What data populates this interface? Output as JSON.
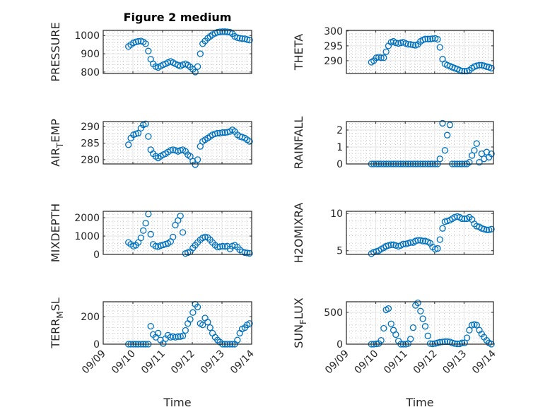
{
  "figure": {
    "title": "Figure 2 medium",
    "marker_color": "#0072BD"
  },
  "chart_data": {
    "type": "scatter",
    "x_axis": {
      "label": "Time",
      "units": "days since 09/09 00:00",
      "range": [
        0,
        5
      ],
      "tick_values": [
        0,
        1,
        2,
        3,
        4,
        5
      ],
      "tick_labels": [
        "09/09",
        "09/10",
        "09/11",
        "09/12",
        "09/13",
        "09/14"
      ]
    },
    "x": [
      0.85,
      0.93,
      1.02,
      1.1,
      1.18,
      1.27,
      1.35,
      1.43,
      1.52,
      1.6,
      1.68,
      1.77,
      1.85,
      1.93,
      2.02,
      2.1,
      2.18,
      2.27,
      2.35,
      2.43,
      2.52,
      2.6,
      2.68,
      2.77,
      2.85,
      2.93,
      3.02,
      3.1,
      3.18,
      3.27,
      3.35,
      3.43,
      3.52,
      3.6,
      3.68,
      3.77,
      3.85,
      3.93,
      4.02,
      4.1,
      4.18,
      4.27,
      4.35,
      4.43,
      4.52,
      4.6,
      4.68,
      4.77,
      4.85,
      4.93
    ],
    "subplots": [
      {
        "name": "PRESSURE",
        "ylabel": "PRESSURE",
        "column": "left",
        "row": 1,
        "ylim": [
          792,
          1028
        ],
        "yticks": [
          800,
          900,
          1000
        ],
        "grid": true,
        "show_xticklabels": false,
        "values": [
          940,
          950,
          960,
          965,
          968,
          970,
          965,
          955,
          915,
          870,
          845,
          830,
          825,
          832,
          840,
          845,
          852,
          858,
          852,
          845,
          838,
          832,
          840,
          845,
          838,
          828,
          815,
          800,
          830,
          900,
          955,
          970,
          985,
          995,
          1005,
          1012,
          1018,
          1020,
          1021,
          1021,
          1020,
          1018,
          1010,
          995,
          988,
          985,
          983,
          982,
          978,
          975
        ]
      },
      {
        "name": "THETA",
        "ylabel": "THETA",
        "column": "right",
        "row": 1,
        "ylim": [
          285.7,
          300.2
        ],
        "yticks": [
          290,
          295,
          300
        ],
        "grid": true,
        "show_xticklabels": false,
        "values": [
          289.5,
          290,
          291,
          291.2,
          291,
          291,
          293,
          295,
          296.2,
          296.5,
          296,
          295.8,
          296,
          296.2,
          295.8,
          295.5,
          295.5,
          295.3,
          295.2,
          295.5,
          296.5,
          297,
          297.3,
          297.3,
          297.3,
          297.4,
          297.5,
          297.2,
          294.5,
          290.5,
          289,
          288.5,
          288.2,
          287.8,
          287.5,
          287.2,
          286.8,
          286.5,
          286.5,
          286.5,
          286.8,
          287.5,
          288,
          288.3,
          288.5,
          288.5,
          288.3,
          288,
          287.8,
          287.5
        ]
      },
      {
        "name": "AIR_TEMP",
        "ylabel": "AIR_TEMP",
        "column": "left",
        "row": 2,
        "ylim": [
          278.7,
          291.5
        ],
        "yticks": [
          280,
          285,
          290
        ],
        "grid": true,
        "show_xticklabels": false,
        "values": [
          284.5,
          286.5,
          287.5,
          287.8,
          288,
          289.5,
          290.5,
          290.8,
          287,
          283,
          281.8,
          281,
          280.5,
          281,
          281.5,
          281.8,
          282.3,
          282.8,
          283,
          282.8,
          282.5,
          282.8,
          283,
          282.5,
          281.5,
          281,
          279.5,
          278.5,
          280,
          284,
          285.5,
          286,
          286.5,
          287,
          287.5,
          287.8,
          288,
          288,
          288.2,
          288.2,
          288.3,
          288.5,
          289,
          288.5,
          287.5,
          287,
          286.8,
          286.5,
          286,
          285.5
        ]
      },
      {
        "name": "RAINFALL",
        "ylabel": "RAINFALL",
        "column": "right",
        "row": 2,
        "ylim": [
          0,
          2.5
        ],
        "yticks": [
          0,
          1,
          2
        ],
        "grid": true,
        "show_xticklabels": false,
        "values": [
          0,
          0,
          0,
          0,
          0,
          0,
          0,
          0,
          0,
          0,
          0,
          0,
          0,
          0,
          0,
          0,
          0,
          0,
          0,
          0,
          0,
          0,
          0,
          0,
          0,
          0,
          0,
          0,
          0.3,
          2.4,
          0.8,
          1.7,
          2.3,
          0,
          0,
          0,
          0,
          0,
          0,
          0,
          0.1,
          0.5,
          0.8,
          1.2,
          0.1,
          0.6,
          0.3,
          0.7,
          0.4,
          0.6
        ]
      },
      {
        "name": "MIXDEPTH",
        "ylabel": "MIXDEPTH",
        "column": "left",
        "row": 3,
        "ylim": [
          0,
          2350
        ],
        "yticks": [
          0,
          1000,
          2000
        ],
        "grid": true,
        "show_xticklabels": false,
        "values": [
          650,
          550,
          450,
          500,
          650,
          900,
          1300,
          1700,
          2200,
          1100,
          550,
          450,
          420,
          480,
          520,
          560,
          600,
          700,
          950,
          1600,
          1850,
          2100,
          1200,
          50,
          100,
          150,
          350,
          500,
          650,
          800,
          900,
          950,
          920,
          800,
          650,
          500,
          400,
          420,
          450,
          430,
          450,
          300,
          450,
          500,
          400,
          250,
          150,
          100,
          80,
          60
        ]
      },
      {
        "name": "H2OMIXRA",
        "ylabel": "H2OMIXRA",
        "column": "right",
        "row": 3,
        "ylim": [
          4.5,
          10.3
        ],
        "yticks": [
          5,
          10
        ],
        "grid": true,
        "show_xticklabels": false,
        "values": [
          4.6,
          4.8,
          4.9,
          5.0,
          5.2,
          5.4,
          5.6,
          5.7,
          5.8,
          5.8,
          5.7,
          5.6,
          5.7,
          5.9,
          5.9,
          6.0,
          6.1,
          6.1,
          6.3,
          6.4,
          6.4,
          6.3,
          6.3,
          6.2,
          6.0,
          5.5,
          5.2,
          5.3,
          6.5,
          8.0,
          8.9,
          9.0,
          9.1,
          9.3,
          9.5,
          9.6,
          9.5,
          9.3,
          9.3,
          9.3,
          9.5,
          9.2,
          8.6,
          8.3,
          8.2,
          8.0,
          7.9,
          7.8,
          7.8,
          7.9
        ]
      },
      {
        "name": "TERR_MSL",
        "ylabel": "TERR_MSL",
        "column": "left",
        "row": 4,
        "ylim": [
          0,
          308
        ],
        "yticks": [
          0,
          200
        ],
        "grid": true,
        "show_xticklabels": true,
        "values": [
          0,
          0,
          0,
          0,
          0,
          0,
          0,
          0,
          0,
          130,
          70,
          50,
          80,
          30,
          5,
          40,
          65,
          50,
          55,
          50,
          55,
          55,
          60,
          100,
          150,
          180,
          230,
          290,
          270,
          150,
          140,
          190,
          160,
          120,
          80,
          50,
          30,
          15,
          0,
          0,
          0,
          0,
          0,
          0,
          30,
          80,
          110,
          120,
          140,
          150
        ]
      },
      {
        "name": "SUN_FLUX",
        "ylabel": "SUN_FLUX",
        "column": "right",
        "row": 4,
        "ylim": [
          0,
          667
        ],
        "yticks": [
          0,
          500
        ],
        "grid": true,
        "show_xticklabels": true,
        "values": [
          0,
          0,
          5,
          10,
          60,
          250,
          540,
          560,
          320,
          220,
          150,
          50,
          0,
          0,
          0,
          10,
          80,
          260,
          610,
          650,
          520,
          400,
          280,
          130,
          10,
          5,
          10,
          20,
          30,
          35,
          40,
          40,
          35,
          20,
          10,
          5,
          5,
          20,
          20,
          100,
          220,
          300,
          310,
          300,
          220,
          160,
          110,
          60,
          20,
          0
        ]
      }
    ]
  }
}
